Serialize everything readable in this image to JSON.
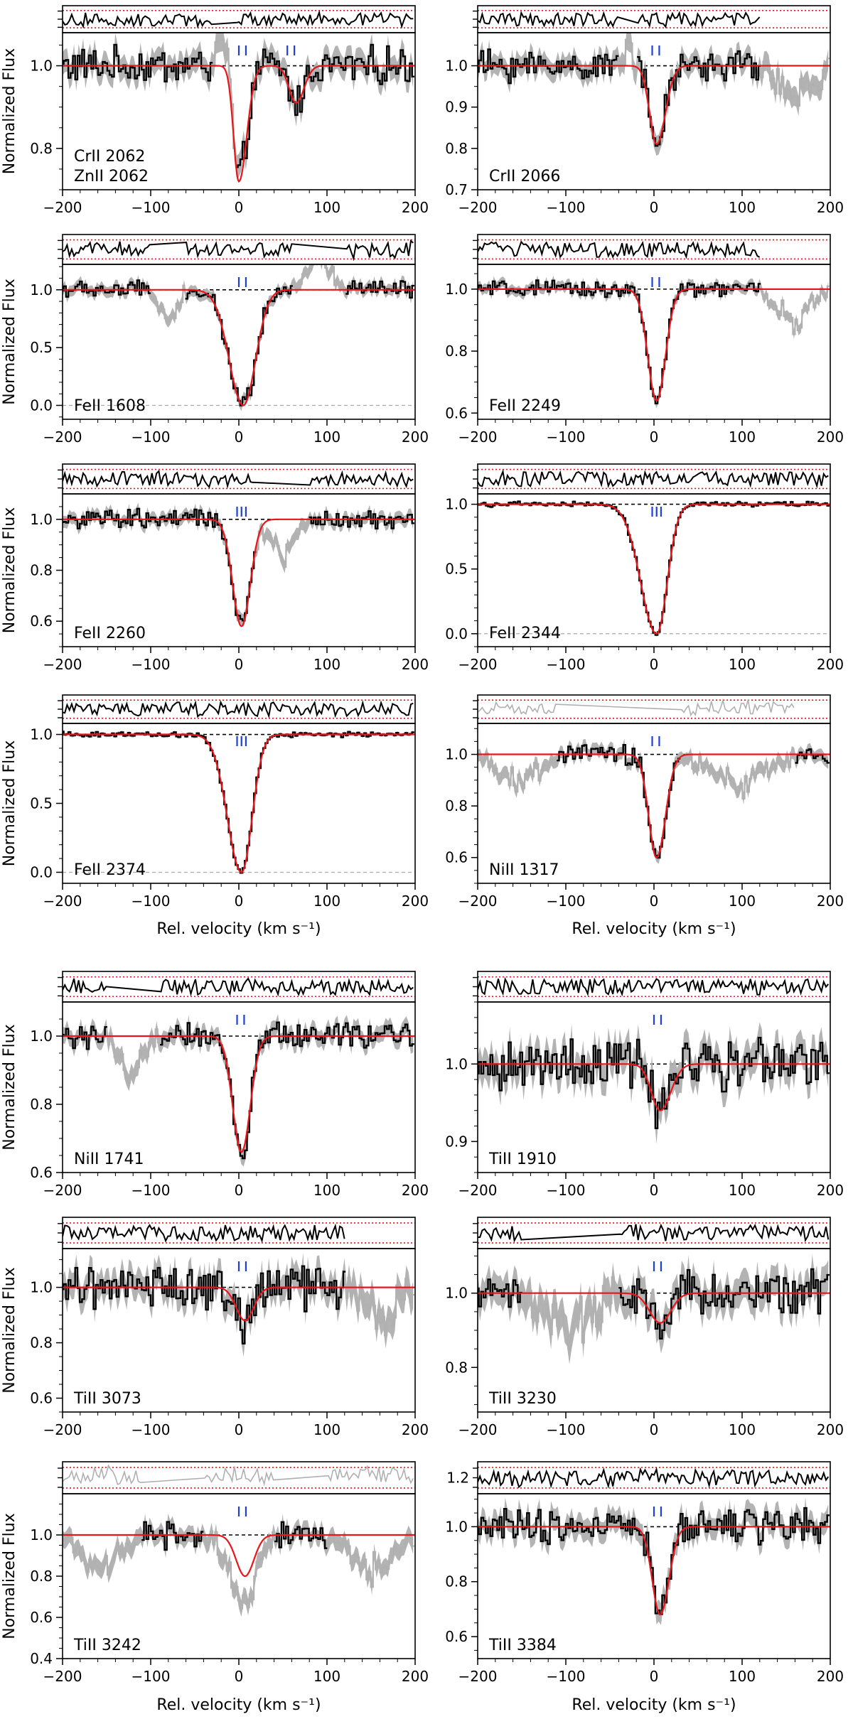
{
  "figure": {
    "ylabel": "Normalized Flux",
    "xlabel": "Rel. velocity  (km s⁻¹)"
  },
  "chart_data": [
    {
      "type": "line",
      "panel_label": [
        "CrII 2062",
        "ZnII 2062"
      ],
      "xlim": [
        -200,
        200
      ],
      "ylim": [
        0.7,
        1.08
      ],
      "yticks": [
        "0.8",
        "1.0"
      ],
      "xticks": [
        "−200",
        "−100",
        "0",
        "100",
        "200"
      ],
      "components": [
        [
          0,
          0.28,
          6,
          9
        ],
        [
          65,
          0.09,
          8,
          9
        ]
      ],
      "markers": [
        0,
        8,
        55,
        63
      ],
      "noise": 0.035,
      "contam": [
        [
          -30,
          -5,
          "up"
        ]
      ],
      "show_xlabel": false,
      "show_ylabel": true
    },
    {
      "type": "line",
      "panel_label": [
        "CrII 2066"
      ],
      "xlim": [
        -200,
        200
      ],
      "ylim": [
        0.7,
        1.08
      ],
      "yticks": [
        "0.7",
        "0.8",
        "0.9",
        "1.0"
      ],
      "xticks": [
        "−200",
        "−100",
        "0",
        "100",
        "200"
      ],
      "components": [
        [
          3,
          0.19,
          8,
          10
        ]
      ],
      "markers": [
        -2,
        6
      ],
      "noise": 0.03,
      "contam": [
        [
          -40,
          -20,
          "up"
        ],
        [
          120,
          200,
          "down"
        ]
      ],
      "show_xlabel": false,
      "show_ylabel": false
    },
    {
      "type": "line",
      "panel_label": [
        "FeII 1608"
      ],
      "xlim": [
        -200,
        200
      ],
      "ylim": [
        -0.12,
        1.22
      ],
      "yticks": [
        "0.0",
        "0.5",
        "1.0"
      ],
      "xticks": [
        "−200",
        "−100",
        "0",
        "100",
        "200"
      ],
      "components": [
        [
          5,
          1.0,
          16,
          14
        ]
      ],
      "markers": [
        0,
        8
      ],
      "noise": 0.06,
      "contam": [
        [
          -100,
          -60,
          "down"
        ],
        [
          60,
          120,
          "up"
        ]
      ],
      "show_xlabel": false,
      "show_ylabel": true
    },
    {
      "type": "line",
      "panel_label": [
        "FeII 2249"
      ],
      "xlim": [
        -200,
        200
      ],
      "ylim": [
        0.58,
        1.08
      ],
      "yticks": [
        "0.6",
        "0.8",
        "1.0"
      ],
      "xticks": [
        "−200",
        "−100",
        "0",
        "100",
        "200"
      ],
      "components": [
        [
          3,
          0.36,
          10,
          10
        ]
      ],
      "markers": [
        -2,
        6
      ],
      "noise": 0.02,
      "contam": [
        [
          120,
          200,
          "down"
        ]
      ],
      "show_xlabel": false,
      "show_ylabel": false
    },
    {
      "type": "line",
      "panel_label": [
        "FeII 2260"
      ],
      "xlim": [
        -200,
        200
      ],
      "ylim": [
        0.5,
        1.1
      ],
      "yticks": [
        "0.6",
        "0.8",
        "1.0"
      ],
      "xticks": [
        "−200",
        "−100",
        "0",
        "100",
        "200"
      ],
      "components": [
        [
          3,
          0.42,
          10,
          10
        ]
      ],
      "markers": [
        -2,
        3,
        8
      ],
      "noise": 0.03,
      "contam": [
        [
          20,
          80,
          "down"
        ]
      ],
      "show_xlabel": false,
      "show_ylabel": true
    },
    {
      "type": "line",
      "panel_label": [
        "FeII 2344"
      ],
      "xlim": [
        -200,
        200
      ],
      "ylim": [
        -0.1,
        1.08
      ],
      "yticks": [
        "0.0",
        "0.5",
        "1.0"
      ],
      "xticks": [
        "−200",
        "−100",
        "0",
        "100",
        "200"
      ],
      "components": [
        [
          3,
          1.0,
          18,
          12
        ]
      ],
      "markers": [
        -2,
        3,
        8
      ],
      "noise": 0.015,
      "contam": [],
      "show_xlabel": false,
      "show_ylabel": false
    },
    {
      "type": "line",
      "panel_label": [
        "FeII 2374"
      ],
      "xlim": [
        -200,
        200
      ],
      "ylim": [
        -0.08,
        1.08
      ],
      "yticks": [
        "0.0",
        "0.5",
        "1.0"
      ],
      "xticks": [
        "−200",
        "−100",
        "0",
        "100",
        "200"
      ],
      "components": [
        [
          3,
          1.0,
          16,
          12
        ]
      ],
      "markers": [
        -2,
        3,
        8
      ],
      "noise": 0.015,
      "contam": [],
      "show_xlabel": true,
      "show_ylabel": true
    },
    {
      "type": "line",
      "panel_label": [
        "NiII 1317"
      ],
      "xlim": [
        -200,
        200
      ],
      "ylim": [
        0.5,
        1.12
      ],
      "yticks": [
        "0.6",
        "0.8",
        "1.0"
      ],
      "xticks": [
        "−200",
        "−100",
        "0",
        "100",
        "200"
      ],
      "components": [
        [
          3,
          0.4,
          9,
          10
        ]
      ],
      "markers": [
        -2,
        6
      ],
      "noise": 0.03,
      "contam": [
        [
          -200,
          -110,
          "down"
        ],
        [
          30,
          160,
          "down"
        ]
      ],
      "show_xlabel": true,
      "show_ylabel": false
    },
    {
      "type": "line",
      "panel_label": [
        "NiII 1741"
      ],
      "xlim": [
        -200,
        200
      ],
      "ylim": [
        0.6,
        1.1
      ],
      "yticks": [
        "0.6",
        "0.8",
        "1.0"
      ],
      "xticks": [
        "−200",
        "−100",
        "0",
        "100",
        "200"
      ],
      "components": [
        [
          3,
          0.34,
          10,
          10
        ]
      ],
      "markers": [
        -2,
        6
      ],
      "noise": 0.03,
      "contam": [
        [
          -150,
          -90,
          "down"
        ]
      ],
      "show_xlabel": false,
      "show_ylabel": true
    },
    {
      "type": "line",
      "panel_label": [
        "TiII 1910"
      ],
      "xlim": [
        -200,
        200
      ],
      "ylim": [
        0.86,
        1.08
      ],
      "yticks": [
        "0.9",
        "1.0"
      ],
      "xticks": [
        "−200",
        "−100",
        "0",
        "100",
        "200"
      ],
      "components": [
        [
          7,
          0.06,
          10,
          12
        ]
      ],
      "markers": [
        0,
        8
      ],
      "noise": 0.025,
      "contam": [],
      "show_xlabel": false,
      "show_ylabel": false
    },
    {
      "type": "line",
      "panel_label": [
        "TiII 3073"
      ],
      "xlim": [
        -200,
        200
      ],
      "ylim": [
        0.55,
        1.14
      ],
      "yticks": [
        "0.6",
        "0.8",
        "1.0"
      ],
      "xticks": [
        "−200",
        "−100",
        "0",
        "100",
        "200"
      ],
      "components": [
        [
          7,
          0.12,
          10,
          10
        ]
      ],
      "markers": [
        0,
        8
      ],
      "noise": 0.06,
      "contam": [
        [
          120,
          200,
          "down"
        ]
      ],
      "show_xlabel": false,
      "show_ylabel": true
    },
    {
      "type": "line",
      "panel_label": [
        "TiII 3230"
      ],
      "xlim": [
        -200,
        200
      ],
      "ylim": [
        0.68,
        1.12
      ],
      "yticks": [
        "0.8",
        "1.0"
      ],
      "xticks": [
        "−200",
        "−100",
        "0",
        "100",
        "200"
      ],
      "components": [
        [
          7,
          0.08,
          12,
          12
        ]
      ],
      "markers": [
        0,
        8
      ],
      "noise": 0.05,
      "contam": [
        [
          -150,
          -40,
          "down"
        ]
      ],
      "show_xlabel": false,
      "show_ylabel": false
    },
    {
      "type": "line",
      "panel_label": [
        "TiII 3242"
      ],
      "xlim": [
        -200,
        200
      ],
      "ylim": [
        0.4,
        1.2
      ],
      "yticks": [
        "0.4",
        "0.6",
        "0.8",
        "1.0"
      ],
      "xticks": [
        "−200",
        "−100",
        "0",
        "100",
        "200"
      ],
      "components": [
        [
          7,
          0.2,
          10,
          10
        ]
      ],
      "markers": [
        0,
        8
      ],
      "noise": 0.05,
      "contam": [
        [
          -200,
          -110,
          "down"
        ],
        [
          -40,
          40,
          "down"
        ],
        [
          100,
          200,
          "down"
        ]
      ],
      "show_xlabel": true,
      "show_ylabel": true
    },
    {
      "type": "line",
      "panel_label": [
        "TiII 3384"
      ],
      "xlim": [
        -200,
        200
      ],
      "ylim": [
        0.52,
        1.12
      ],
      "yticks": [
        "0.6",
        "0.8",
        "1.0"
      ],
      "xticks": [
        "−200",
        "−100",
        "0",
        "100",
        "200"
      ],
      "components": [
        [
          7,
          0.32,
          9,
          10
        ]
      ],
      "markers": [
        0,
        8
      ],
      "noise": 0.05,
      "contam": [],
      "show_xlabel": true,
      "show_ylabel": false,
      "extra_resid_tick": "1.2"
    }
  ]
}
